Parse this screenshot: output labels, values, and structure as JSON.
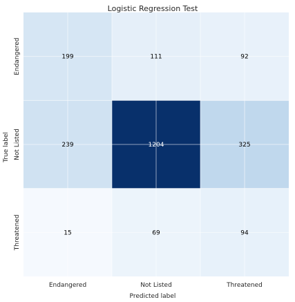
{
  "chart_data": {
    "type": "heatmap",
    "title": "Logistic Regression Test",
    "xlabel": "Predicted label",
    "ylabel": "True label",
    "x_categories": [
      "Endangered",
      "Not Listed",
      "Threatened"
    ],
    "y_categories": [
      "Endangered",
      "Not Listed",
      "Threatened"
    ],
    "values": [
      [
        199,
        111,
        92
      ],
      [
        239,
        1204,
        325
      ],
      [
        15,
        69,
        94
      ]
    ],
    "colormap": "Blues",
    "color_low": "#f7fbff",
    "color_high": "#08306b",
    "grid": true,
    "grid_color": "#ffffff",
    "text_color_dark": "#000000",
    "text_color_light": "#ffffff"
  }
}
